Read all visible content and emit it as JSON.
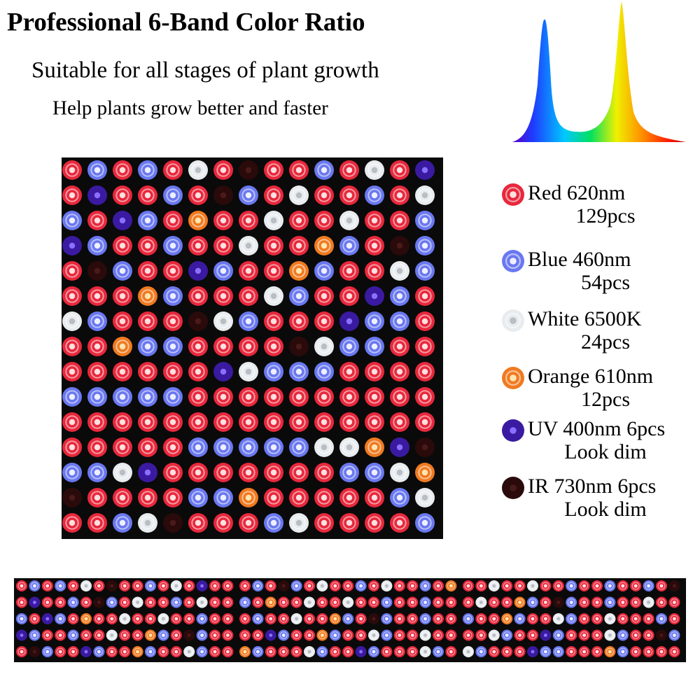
{
  "header": {
    "title": "Professional 6-Band Color Ratio",
    "subtitle": "Suitable for all stages of plant growth",
    "tagline": "Help plants grow better and faster"
  },
  "legend": [
    {
      "label": "Red  620nm",
      "detail": "129pcs"
    },
    {
      "label": "Blue 460nm",
      "detail": "54pcs"
    },
    {
      "label": "White 6500K",
      "detail": "24pcs"
    },
    {
      "label": "Orange 610nm",
      "detail": "12pcs"
    },
    {
      "label": "UV 400nm 6pcs",
      "detail": "Look dim"
    },
    {
      "label": "IR 730nm 6pcs",
      "detail": "Look dim"
    }
  ]
}
